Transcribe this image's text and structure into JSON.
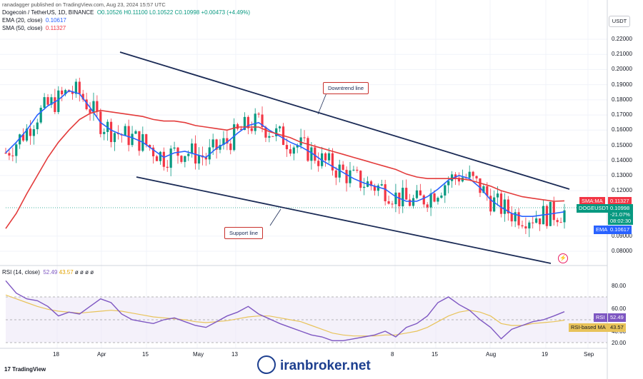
{
  "header": {
    "publish_line": "ranadagger published on TradingView.com, Aug 23, 2024 15:57 UTC",
    "symbol": "Dogecoin / TetherUS, 1D, BINANCE",
    "ohlc": {
      "o": "O0.10526",
      "h": "H0.11100",
      "l": "L0.10522",
      "c": "C0.10998",
      "chg": "+0.00473 (+4.49%)"
    },
    "ema_label": "EMA (20, close)",
    "ema_value": "0.10617",
    "sma_label": "SMA (50, close)",
    "sma_value": "0.11327",
    "currency": "USDT"
  },
  "price_axis": [
    "0.22000",
    "0.21000",
    "0.20000",
    "0.19000",
    "0.18000",
    "0.17000",
    "0.16000",
    "0.15000",
    "0.14000",
    "0.13000",
    "0.12000",
    "0.09000",
    "0.08000"
  ],
  "price_badges": {
    "sma_tag": "SMA:MA",
    "sma": "0.11327",
    "symbol": "DOGEUSDT",
    "price": "0.10998",
    "pct": "-21.07%",
    "timer": "08:02:30",
    "ema_tag": "EMA",
    "ema": "0.10617"
  },
  "annotations": {
    "downtrend": "Downtrend line",
    "support": "Support line"
  },
  "rsi": {
    "label": "RSI (14, close)",
    "value": "52.49",
    "ma": "43.57",
    "extra": "ø ø ø ø",
    "axis": [
      "80.00",
      "60.00",
      "40.00",
      "20.00"
    ],
    "badge_rsi": "RSI",
    "badge_rsi_val": "52.49",
    "badge_ma": "RSI-based MA",
    "badge_ma_val": "43.57"
  },
  "time_axis": [
    "18",
    "Apr",
    "15",
    "May",
    "13",
    "8",
    "15",
    "Aug",
    "19",
    "Sep"
  ],
  "footer": {
    "brand": "TradingView",
    "watermark": "iranbroker.net"
  },
  "colors": {
    "up": "#089981",
    "down": "#f23645",
    "ema": "#2962ff",
    "sma": "#e33b3b",
    "rsi": "#7e57c2",
    "rsima": "#e8c35a",
    "trend": "#1a2a55"
  },
  "chart_data": {
    "type": "candlestick",
    "y_range": [
      0.072,
      0.228
    ],
    "ema": [
      0.145,
      0.152,
      0.16,
      0.17,
      0.176,
      0.18,
      0.186,
      0.184,
      0.175,
      0.165,
      0.16,
      0.157,
      0.155,
      0.152,
      0.147,
      0.142,
      0.145,
      0.146,
      0.144,
      0.142,
      0.148,
      0.152,
      0.158,
      0.163,
      0.165,
      0.16,
      0.156,
      0.152,
      0.149,
      0.145,
      0.14,
      0.136,
      0.132,
      0.128,
      0.125,
      0.123,
      0.121,
      0.116,
      0.113,
      0.113,
      0.116,
      0.121,
      0.127,
      0.13,
      0.128,
      0.122,
      0.114,
      0.109,
      0.105,
      0.103,
      0.103,
      0.104,
      0.105,
      0.106
    ],
    "sma": [
      0.095,
      0.105,
      0.118,
      0.13,
      0.142,
      0.152,
      0.16,
      0.167,
      0.171,
      0.173,
      0.172,
      0.171,
      0.17,
      0.169,
      0.167,
      0.166,
      0.166,
      0.165,
      0.163,
      0.162,
      0.161,
      0.16,
      0.162,
      0.162,
      0.162,
      0.159,
      0.157,
      0.155,
      0.152,
      0.15,
      0.148,
      0.146,
      0.144,
      0.142,
      0.14,
      0.138,
      0.136,
      0.134,
      0.131,
      0.129,
      0.128,
      0.128,
      0.128,
      0.128,
      0.127,
      0.125,
      0.123,
      0.12,
      0.118,
      0.116,
      0.115,
      0.114,
      0.113,
      0.1133
    ],
    "rsi": [
      85,
      72,
      66,
      64,
      58,
      48,
      52,
      50,
      58,
      66,
      62,
      50,
      44,
      42,
      40,
      44,
      46,
      42,
      38,
      36,
      42,
      48,
      52,
      58,
      50,
      45,
      40,
      36,
      32,
      28,
      26,
      22,
      22,
      24,
      26,
      28,
      32,
      26,
      36,
      40,
      48,
      62,
      68,
      60,
      54,
      44,
      36,
      24,
      34,
      38,
      42,
      44,
      48,
      52.49
    ],
    "rsi_ma": [
      70,
      66,
      62,
      58,
      55,
      53,
      52,
      51,
      52,
      53,
      54,
      53,
      51,
      49,
      47,
      46,
      45,
      44,
      42,
      41,
      42,
      43,
      45,
      47,
      48,
      48,
      46,
      44,
      42,
      38,
      34,
      30,
      28,
      27,
      27,
      27,
      28,
      28,
      30,
      32,
      36,
      42,
      48,
      52,
      54,
      52,
      48,
      40,
      38,
      38,
      40,
      41,
      42,
      43.57
    ],
    "downtrend_line": [
      [
        0.21,
        0
      ],
      [
        0.124,
        1
      ]
    ],
    "support_line": [
      [
        0.129,
        0
      ],
      [
        0.076,
        1
      ]
    ]
  }
}
